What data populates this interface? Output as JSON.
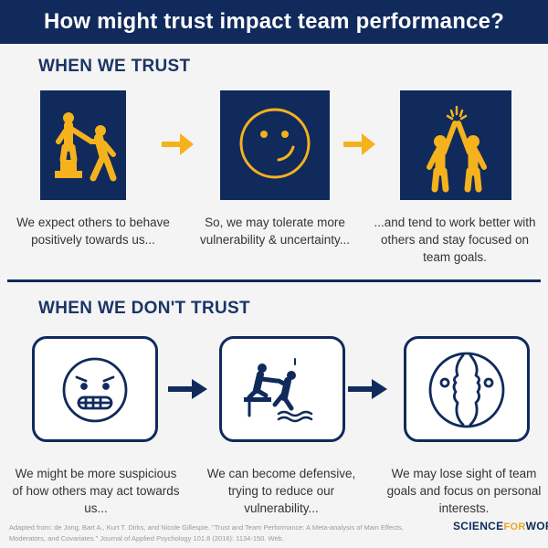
{
  "title": "How might trust impact team performance?",
  "colors": {
    "navy": "#102a5c",
    "accent": "#f5b21d",
    "text": "#333333"
  },
  "trust": {
    "heading": "WHEN WE TRUST",
    "steps": [
      {
        "icon": "helping-hand-icon",
        "text": "We expect others to behave positively towards us..."
      },
      {
        "icon": "smiley-face-icon",
        "text": "So, we may tolerate more vulnerability & uncertainty..."
      },
      {
        "icon": "high-five-icon",
        "text": "...and tend to work better with others and stay focused on team goals."
      }
    ]
  },
  "no_trust": {
    "heading": "WHEN WE DON'T TRUST",
    "steps": [
      {
        "icon": "anxious-face-icon",
        "text": "We might be more suspicious of how others may act towards us..."
      },
      {
        "icon": "push-off-ledge-icon",
        "text": "We can become defensive, trying to reduce our vulnerability..."
      },
      {
        "icon": "faces-turned-away-icon",
        "text": "We may lose sight of team goals and focus on personal interests."
      }
    ]
  },
  "footer": {
    "citation": "Adapted from:  de Jong, Bart A., Kurt T. Dirks, and Nicole Gillespie. \"Trust and Team Performance: A Meta-analysis of Main Effects, Moderators, and Covariates.\" Journal of Applied Psychology 101.8 (2016): 1134-150. Web.",
    "logo_left": "SCIENCE",
    "logo_mid": "FOR",
    "logo_right": "WORK"
  }
}
